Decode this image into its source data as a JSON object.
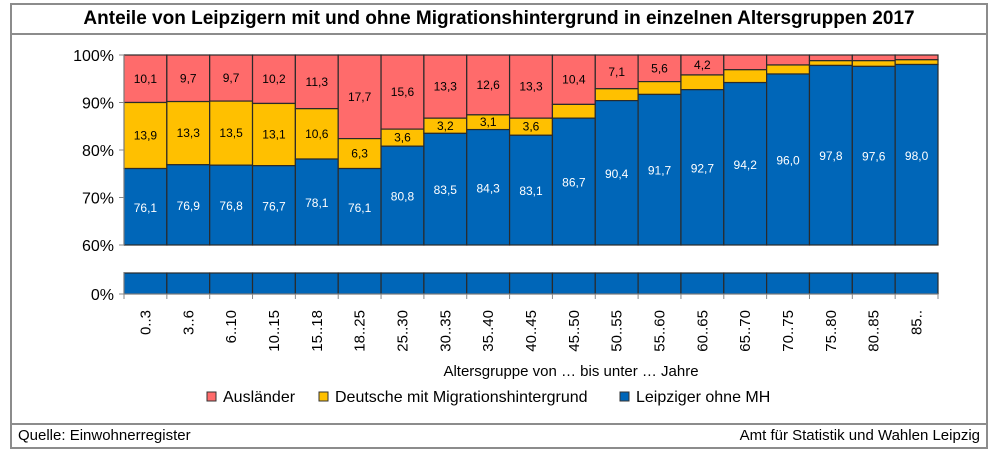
{
  "header": {
    "title": "Anteile von Leipzigern mit und ohne Migrationshintergrund in einzelnen Altersgruppen 2017"
  },
  "footer": {
    "source": "Quelle: Einwohnerregister",
    "publisher": "Amt für Statistik und Wahlen Leipzig"
  },
  "chart_data": {
    "type": "bar",
    "stacked": true,
    "percent_stacked": true,
    "title": "Anteile von Leipzigern mit und ohne Migrationshintergrund in einzelnen Altersgruppen 2017",
    "xlabel": "Altersgruppe von … bis unter … Jahre",
    "ylabel": "",
    "ylim": [
      0,
      100
    ],
    "axis_break": [
      0,
      60
    ],
    "yticks": [
      "0%",
      "60%",
      "70%",
      "80%",
      "90%",
      "100%"
    ],
    "ytick_values": [
      0,
      60,
      70,
      80,
      90,
      100
    ],
    "grid": false,
    "legend_position": "bottom",
    "categories": [
      "0..3",
      "3..6",
      "6..10",
      "10..15",
      "15..18",
      "18..25",
      "25..30",
      "30..35",
      "35..40",
      "40..45",
      "45..50",
      "50..55",
      "55..60",
      "60..65",
      "65..70",
      "70..75",
      "75..80",
      "80..85",
      "85.."
    ],
    "series": [
      {
        "name": "Leipziger ohne MH",
        "color": "#0066b8",
        "label_color": "#ffffff",
        "values": [
          76.1,
          76.9,
          76.8,
          76.7,
          78.1,
          76.1,
          80.8,
          83.5,
          84.3,
          83.1,
          86.7,
          90.4,
          91.7,
          92.7,
          94.2,
          96.0,
          97.8,
          97.6,
          98.0
        ],
        "labels": [
          "76,1",
          "76,9",
          "76,8",
          "76,7",
          "78,1",
          "76,1",
          "80,8",
          "83,5",
          "84,3",
          "83,1",
          "86,7",
          "90,4",
          "91,7",
          "92,7",
          "94,2",
          "96,0",
          "97,8",
          "97,6",
          "98,0"
        ]
      },
      {
        "name": "Deutsche mit Migrationshintergrund",
        "color": "#ffc000",
        "label_color": "#000000",
        "values": [
          13.9,
          13.3,
          13.5,
          13.1,
          10.6,
          6.3,
          3.6,
          3.2,
          3.1,
          3.6,
          2.9,
          2.5,
          2.7,
          3.1,
          2.7,
          1.9,
          1.0,
          1.2,
          1.0
        ],
        "labels": [
          "13,9",
          "13,3",
          "13,5",
          "13,1",
          "10,6",
          "6,3",
          "3,6",
          "3,2",
          "3,1",
          "3,6",
          "",
          "",
          "",
          "",
          "",
          "",
          "",
          "",
          ""
        ]
      },
      {
        "name": "Ausländer",
        "color": "#ff6b6b",
        "label_color": "#000000",
        "values": [
          10.1,
          9.7,
          9.7,
          10.2,
          11.3,
          17.7,
          15.6,
          13.3,
          12.6,
          13.3,
          10.4,
          7.1,
          5.6,
          4.2,
          3.1,
          2.1,
          1.2,
          1.2,
          1.0
        ],
        "labels": [
          "10,1",
          "9,7",
          "9,7",
          "10,2",
          "11,3",
          "17,7",
          "15,6",
          "13,3",
          "12,6",
          "13,3",
          "10,4",
          "7,1",
          "5,6",
          "4,2",
          "",
          "",
          "",
          "",
          ""
        ]
      }
    ],
    "legend": [
      "Ausländer",
      "Deutsche mit Migrationshintergrund",
      "Leipziger ohne MH"
    ]
  }
}
